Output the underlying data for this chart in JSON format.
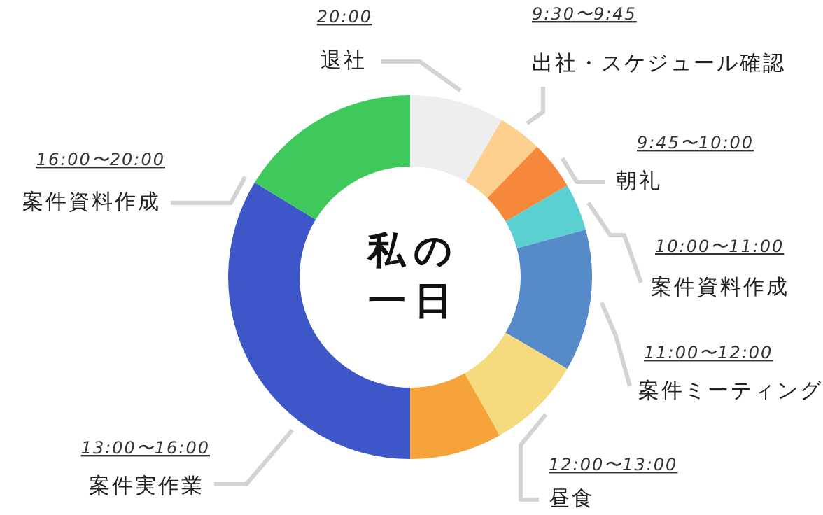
{
  "chart_data": {
    "type": "donut",
    "title": "私の一日",
    "categories": [
      "退社",
      "出社・スケジュール確認",
      "朝礼",
      "案件資料作成",
      "案件ミーティング",
      "昼食",
      null,
      "案件実作業",
      "案件資料作成"
    ],
    "values": [
      8.4,
      3.9,
      4.3,
      4.2,
      12.6,
      8.4,
      8.2,
      33.7,
      16.3
    ],
    "colors": [
      "#eeeeee",
      "#fdd08f",
      "#f5883a",
      "#5bd0d3",
      "#568ac9",
      "#f5da7e",
      "#f5a33a",
      "#3d57c8",
      "#3fc95d"
    ],
    "annotations": [
      {
        "text": "20:00",
        "x": "退社"
      },
      {
        "text": "9:30〜9:45",
        "x": "出社・スケジュール確認"
      },
      {
        "text": "9:45〜10:00",
        "x": "朝礼"
      },
      {
        "text": "10:00〜11:00",
        "x": "案件資料作成"
      },
      {
        "text": "11:00〜12:00",
        "x": "案件ミーティング"
      },
      {
        "text": "12:00〜13:00",
        "x": "昼食"
      },
      {
        "text": "13:00〜16:00",
        "x": "案件実作業"
      },
      {
        "text": "16:00〜20:00",
        "x": "案件資料作成"
      }
    ]
  }
}
